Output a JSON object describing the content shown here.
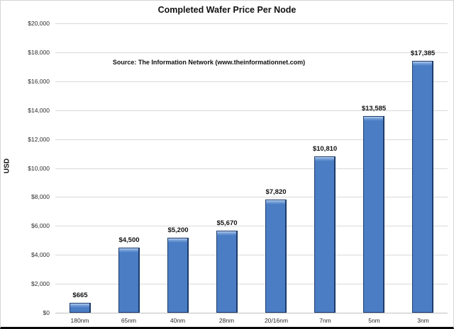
{
  "chart_data": {
    "type": "bar",
    "title": "Completed Wafer Price Per Node",
    "source_note": "Source: The Information Network (www.theinformationnet.com)",
    "ylabel": "USD",
    "xlabel": "",
    "categories": [
      "180nm",
      "65nm",
      "40nm",
      "28nm",
      "20/16nm",
      "7nm",
      "5nm",
      "3nm"
    ],
    "values": [
      665,
      4500,
      5200,
      5670,
      7820,
      10810,
      13585,
      17385
    ],
    "data_labels": [
      "$665",
      "$4,500",
      "$5,200",
      "$5,670",
      "$7,820",
      "$10,810",
      "$13,585",
      "$17,385"
    ],
    "ylim": [
      0,
      20000
    ],
    "ytick_step": 2000,
    "ytick_labels": [
      "$0",
      "$2,000",
      "$4,000",
      "$6,000",
      "$8,000",
      "$10,000",
      "$12,000",
      "$14,000",
      "$16,000",
      "$18,000",
      "$20,000"
    ],
    "grid": true,
    "legend": "none",
    "colors": {
      "bar_fill": "#4a7dc4",
      "bar_bevel_light": "#bdd4f0",
      "bar_bevel_mid": "#7fa7dc",
      "bar_border": "#1d3c6b",
      "gridline": "#d9d9d9",
      "axis_line": "#bfbfbf",
      "text": "#111111",
      "background": "#ffffff"
    }
  }
}
